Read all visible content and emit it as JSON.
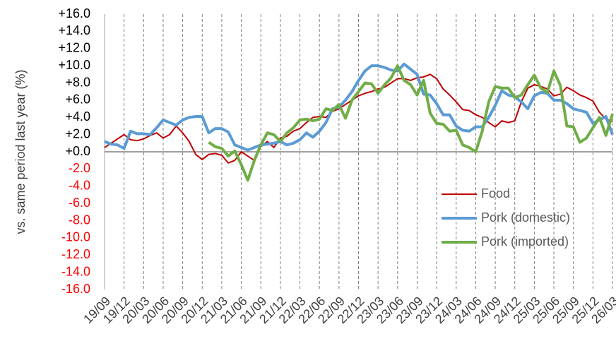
{
  "chart_data": {
    "type": "line",
    "y_label": "vs. same period last year  (%)",
    "categories": [
      "19/09",
      null,
      null,
      "19/12",
      null,
      null,
      "20/03",
      null,
      null,
      "20/06",
      null,
      null,
      "20/09",
      null,
      null,
      "20/12",
      null,
      null,
      "21/03",
      null,
      null,
      "21/06",
      null,
      null,
      "21/09",
      null,
      null,
      "21/12",
      null,
      null,
      "22/03",
      null,
      null,
      "22/06",
      null,
      null,
      "22/09",
      null,
      null,
      "22/12",
      null,
      null,
      "23/03",
      null,
      null,
      "23/06",
      null,
      null,
      "23/09",
      null,
      null,
      "23/12",
      null,
      null,
      "24/03",
      null,
      null,
      "24/06",
      null,
      null,
      "24/09",
      null,
      null,
      "24/12",
      null,
      null,
      "25/03",
      null,
      null,
      "25/06",
      null,
      null,
      "25/09",
      null,
      null,
      "25/12",
      null,
      null,
      "26/03"
    ],
    "series": [
      {
        "name": "Food",
        "color": "#c00000",
        "width": 2,
        "values": [
          0.5,
          1.0,
          1.5,
          2.0,
          1.4,
          1.3,
          1.5,
          1.9,
          2.2,
          1.6,
          2.0,
          3.0,
          2.2,
          1.2,
          -0.3,
          -0.9,
          -0.3,
          -0.2,
          -0.4,
          -1.3,
          -1.0,
          0.0,
          -0.5,
          -1.0,
          0.6,
          1.2,
          0.5,
          1.6,
          1.8,
          2.4,
          2.7,
          3.4,
          4.0,
          4.1,
          4.0,
          4.7,
          5.0,
          5.5,
          6.0,
          6.5,
          6.8,
          7.0,
          7.3,
          7.5,
          8.0,
          8.5,
          8.5,
          8.3,
          8.6,
          8.7,
          9.0,
          8.5,
          7.3,
          6.6,
          5.8,
          4.9,
          4.8,
          4.3,
          4.0,
          3.4,
          2.9,
          3.6,
          3.4,
          3.6,
          5.8,
          7.4,
          7.8,
          7.6,
          7.3,
          6.5,
          6.7,
          7.5,
          7.1,
          6.6,
          6.3,
          5.9,
          4.6,
          3.8,
          3.5
        ]
      },
      {
        "name": "Pork (domestic)",
        "color": "#5b9bd5",
        "width": 4,
        "values": [
          1.2,
          0.9,
          0.8,
          0.4,
          2.4,
          2.1,
          2.1,
          2.0,
          2.8,
          3.7,
          3.4,
          3.1,
          3.7,
          4.0,
          4.1,
          4.1,
          2.2,
          2.7,
          2.7,
          2.3,
          0.8,
          0.5,
          0.2,
          0.5,
          0.8,
          0.9,
          1.0,
          1.2,
          0.8,
          1.0,
          1.4,
          2.2,
          1.7,
          2.4,
          3.4,
          5.0,
          5.2,
          6.0,
          7.0,
          8.3,
          9.4,
          10.0,
          10.0,
          9.8,
          9.5,
          9.4,
          10.2,
          9.6,
          9.0,
          6.7,
          6.6,
          5.6,
          4.3,
          4.3,
          3.0,
          2.5,
          2.4,
          2.9,
          2.9,
          4.0,
          5.4,
          7.1,
          6.6,
          6.4,
          5.8,
          5.0,
          6.5,
          6.9,
          6.8,
          6.0,
          6.0,
          5.6,
          5.0,
          4.8,
          4.6,
          3.3,
          3.7,
          4.1,
          2.0
        ]
      },
      {
        "name": "Pork (imported)",
        "color": "#70ad47",
        "width": 4,
        "values": [
          null,
          null,
          null,
          null,
          null,
          null,
          null,
          null,
          null,
          null,
          null,
          null,
          null,
          null,
          null,
          null,
          1.1,
          0.6,
          0.4,
          -0.5,
          0.1,
          -1.5,
          -3.3,
          -1.0,
          0.8,
          2.2,
          2.0,
          1.2,
          2.2,
          2.8,
          3.7,
          3.8,
          3.6,
          3.8,
          5.0,
          4.8,
          5.5,
          3.9,
          6.0,
          7.0,
          8.0,
          7.9,
          6.8,
          7.8,
          8.6,
          10.0,
          8.3,
          7.8,
          6.6,
          8.3,
          4.5,
          3.3,
          3.2,
          2.4,
          2.5,
          0.8,
          0.5,
          0.0,
          2.4,
          5.8,
          7.6,
          7.4,
          7.4,
          6.3,
          6.6,
          7.8,
          8.9,
          7.4,
          6.9,
          9.4,
          7.7,
          3.0,
          2.9,
          1.1,
          1.6,
          2.8,
          4.0,
          1.9,
          4.4
        ]
      }
    ],
    "ylim": [
      -16,
      16
    ],
    "yticks": [
      {
        "value": 16,
        "label": "+16.0"
      },
      {
        "value": 14,
        "label": "+14.0"
      },
      {
        "value": 12,
        "label": "+12.0"
      },
      {
        "value": 10,
        "label": "+10.0"
      },
      {
        "value": 8,
        "label": "+8.0"
      },
      {
        "value": 6,
        "label": "+6.0"
      },
      {
        "value": 4,
        "label": "+4.0"
      },
      {
        "value": 2,
        "label": "+2.0"
      },
      {
        "value": 0,
        "label": "+0.0"
      },
      {
        "value": -2,
        "label": "-2.0"
      },
      {
        "value": -4,
        "label": "-4.0"
      },
      {
        "value": -6,
        "label": "-6.0"
      },
      {
        "value": -8,
        "label": "-8.0"
      },
      {
        "value": -10,
        "label": "-10.0"
      },
      {
        "value": -12,
        "label": "-12.0"
      },
      {
        "value": -14,
        "label": "-14.0"
      },
      {
        "value": -16,
        "label": "-16.0"
      }
    ],
    "negative_tick_color": "#ff0000",
    "grid": "dashed",
    "legend": "right"
  }
}
